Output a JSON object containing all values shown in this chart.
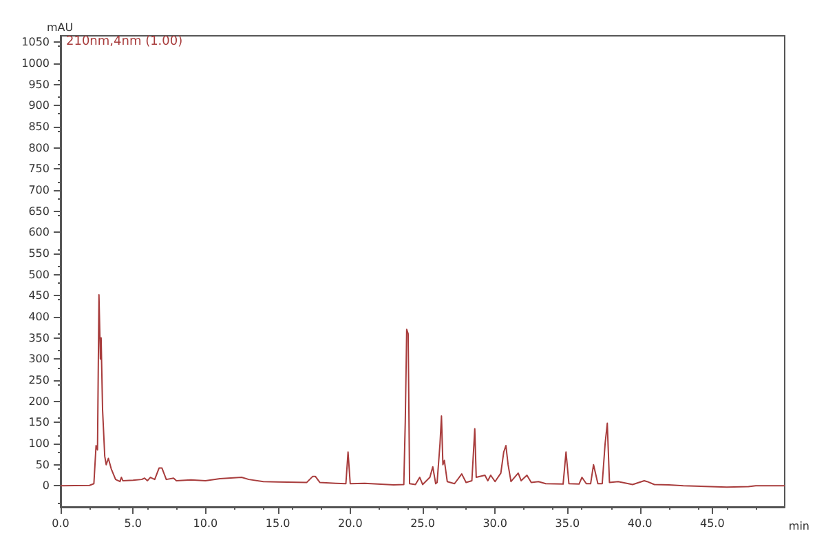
{
  "chart_data": {
    "type": "line",
    "ylabel": "mAU",
    "xlabel": "min",
    "annotations": [
      "210nm,4nm (1.00)"
    ],
    "x": [
      0,
      2.0,
      2.3,
      2.45,
      2.55,
      2.65,
      2.75,
      2.8,
      2.9,
      3.05,
      3.15,
      3.3,
      3.5,
      3.8,
      4.1,
      4.2,
      4.3,
      5.0,
      5.6,
      5.8,
      6.0,
      6.2,
      6.5,
      6.8,
      7.0,
      7.3,
      7.8,
      8.0,
      9.0,
      10.0,
      11.0,
      12.5,
      13.0,
      14.0,
      15.0,
      17.0,
      17.4,
      17.6,
      17.9,
      19.0,
      19.7,
      19.85,
      20.0,
      21.0,
      23.0,
      23.7,
      23.8,
      23.9,
      24.0,
      24.1,
      24.5,
      24.8,
      25.0,
      25.5,
      25.7,
      25.9,
      26.0,
      26.2,
      26.3,
      26.4,
      26.5,
      26.7,
      27.2,
      27.7,
      28.0,
      28.4,
      28.6,
      28.7,
      29.3,
      29.5,
      29.7,
      30.0,
      30.4,
      30.6,
      30.75,
      30.9,
      31.1,
      31.6,
      31.8,
      32.2,
      32.5,
      33.0,
      33.5,
      34.7,
      34.9,
      35.1,
      35.8,
      36.0,
      36.3,
      36.6,
      36.8,
      37.1,
      37.4,
      37.6,
      37.75,
      37.9,
      38.5,
      39.5,
      40.3,
      40.5,
      41.0,
      42.0,
      43.0,
      46.0,
      47.5,
      48.0,
      50.0
    ],
    "series": [
      {
        "color": "#a83c3c",
        "values": [
          0,
          1,
          5,
          95,
          85,
          452,
          300,
          350,
          180,
          70,
          50,
          65,
          40,
          15,
          10,
          20,
          12,
          13,
          15,
          18,
          12,
          20,
          15,
          42,
          42,
          15,
          18,
          12,
          14,
          12,
          17,
          20,
          15,
          10,
          9,
          8,
          22,
          22,
          8,
          6,
          5,
          80,
          5,
          6,
          2,
          3,
          150,
          370,
          360,
          5,
          3,
          20,
          3,
          20,
          45,
          5,
          8,
          100,
          165,
          50,
          60,
          10,
          5,
          28,
          8,
          12,
          135,
          20,
          25,
          12,
          25,
          10,
          30,
          80,
          95,
          50,
          10,
          30,
          12,
          25,
          8,
          10,
          5,
          4,
          80,
          5,
          4,
          20,
          5,
          5,
          50,
          5,
          5,
          100,
          148,
          8,
          10,
          3,
          12,
          10,
          3,
          2,
          0,
          -3,
          -2,
          0,
          0
        ]
      }
    ],
    "xlim": [
      0,
      50
    ],
    "ylim": [
      -50,
      1065
    ],
    "xticks": [
      {
        "value": 0,
        "label": "0.0"
      },
      {
        "value": 5,
        "label": "5.0"
      },
      {
        "value": 10,
        "label": "10.0"
      },
      {
        "value": 15,
        "label": "15.0"
      },
      {
        "value": 20,
        "label": "20.0"
      },
      {
        "value": 25,
        "label": "25.0"
      },
      {
        "value": 30,
        "label": "30.0"
      },
      {
        "value": 35,
        "label": "35.0"
      },
      {
        "value": 40,
        "label": "40.0"
      },
      {
        "value": 45,
        "label": "45.0"
      }
    ],
    "yticks": [
      0,
      50,
      100,
      150,
      200,
      250,
      300,
      350,
      400,
      450,
      500,
      550,
      600,
      650,
      700,
      750,
      800,
      850,
      900,
      950,
      1000,
      1050
    ],
    "grid": false,
    "marker": "none",
    "line_style": "solid"
  }
}
